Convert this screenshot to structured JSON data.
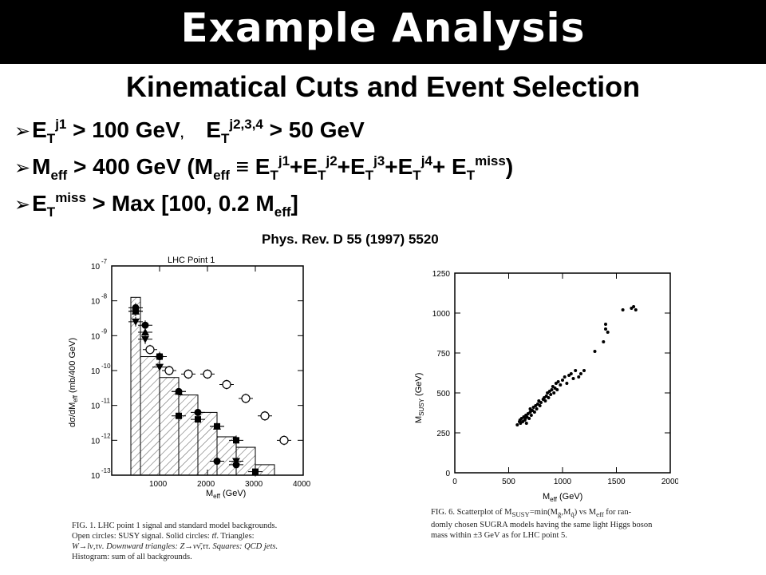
{
  "slide": {
    "title": "Example Analysis",
    "subtitle": "Kinematical Cuts and Event Selection",
    "reference": "Phys. Rev. D 55 (1997) 5520"
  },
  "bullets": {
    "b1": {
      "e1": "E",
      "t1": "T",
      "j1": "j1",
      "g1": " > 100 GeV",
      "comma": ",",
      "e2": "E",
      "t2": "T",
      "j2": "j2,3,4",
      "g2": " > 50 GeV"
    },
    "b2": {
      "m": "M",
      "eff": "eff",
      "g": " > 400 GeV (M",
      "eff2": "eff",
      "equiv": " ≡ ",
      "e1": "E",
      "t1": "T",
      "j1": "j1",
      "plus1": "+E",
      "t2": "T",
      "j2": "j2",
      "plus2": "+E",
      "t3": "T",
      "j3": "j3",
      "plus3": "+E",
      "t4": "T",
      "j4": "j4",
      "plus4": "+ E",
      "t5": "T",
      "miss": "miss",
      "close": ")"
    },
    "b3": {
      "e": "E",
      "t": "T",
      "miss": "miss",
      "g": " > Max [100, 0.2 M",
      "eff": "eff",
      "close": "]"
    }
  },
  "left_plot": {
    "panel_title": "LHC Point 1",
    "ylabel": "dσ/dM",
    "ylabel_sub": "eff",
    "ylabel_units": " (mb/400 GeV)",
    "xlabel": "M",
    "xlabel_sub": "eff",
    "xlabel_units": " (GeV)",
    "y_exp_labels": [
      "-7",
      "-8",
      "-9",
      "-10",
      "-11",
      "-12",
      "-13"
    ],
    "y_ten_labels": [
      "10",
      "10",
      "10",
      "10",
      "10",
      "10",
      "10"
    ],
    "x_tick_labels": [
      "1000",
      "2000",
      "3000",
      "4000"
    ],
    "caption": {
      "l1": "FIG. 1.  LHC point 1 signal and standard model backgrounds.",
      "l2a": "Open  circles:  SUSY  signal.  Solid  circles: ",
      "l2b": "tt̄",
      "l2c": ".  Triangles:",
      "l3": "W→lν,τν.  Downward triangles:  Z→νν̄,ττ.  Squares:  QCD jets.",
      "l4": "Histogram: sum of all backgrounds."
    }
  },
  "chart_data": [
    {
      "type": "scatter",
      "title": "LHC Point 1",
      "xlabel": "Meff (GeV)",
      "ylabel": "dσ/dMeff (mb/400 GeV)",
      "xlim": [
        0,
        4000
      ],
      "ylim_log10": [
        -13,
        -7
      ],
      "histogram": {
        "name": "Histogram: sum of all backgrounds",
        "bin_edges": [
          400,
          600,
          1000,
          1400,
          1800,
          2200,
          2600,
          3000,
          3400
        ],
        "log10_values": [
          -7.9,
          -9.6,
          -10.2,
          -10.7,
          -11.2,
          -11.9,
          -12.2,
          -12.7
        ]
      },
      "series": [
        {
          "name": "Open circles: SUSY signal",
          "x": [
            800,
            1200,
            1600,
            2000,
            2400,
            2800,
            3200,
            3600
          ],
          "log10_y": [
            -9.4,
            -10.0,
            -10.1,
            -10.1,
            -10.4,
            -10.8,
            -11.3,
            -12.0
          ]
        },
        {
          "name": "Solid circles: tt̄",
          "x": [
            500,
            700,
            1000,
            1400,
            1800,
            2200,
            2600
          ],
          "log10_y": [
            -8.2,
            -8.7,
            -9.6,
            -10.6,
            -11.2,
            -12.6,
            -12.7
          ]
        },
        {
          "name": "Triangles: W→lν,τν",
          "x": [
            500,
            700,
            1400,
            2200
          ],
          "log10_y": [
            -8.3,
            -8.9,
            -10.6,
            -11.6
          ]
        },
        {
          "name": "Downward triangles: Z→νν̄,ττ",
          "x": [
            500,
            700,
            1000,
            2600
          ],
          "log10_y": [
            -8.6,
            -9.1,
            -9.9,
            -12.6
          ]
        },
        {
          "name": "Squares: QCD jets",
          "x": [
            500,
            1000,
            1400,
            1800,
            2200,
            2600,
            3000
          ],
          "log10_y": [
            -8.3,
            -9.6,
            -11.3,
            -11.4,
            -11.6,
            -12.0,
            -12.9
          ]
        }
      ]
    },
    {
      "type": "scatter",
      "xlabel": "Meff (GeV)",
      "ylabel": "MSUSY (GeV)",
      "xlim": [
        0,
        2000
      ],
      "ylim": [
        0,
        1250
      ],
      "x": [
        580,
        600,
        605,
        610,
        620,
        630,
        640,
        650,
        655,
        660,
        665,
        670,
        680,
        690,
        700,
        700,
        710,
        720,
        730,
        740,
        750,
        760,
        770,
        780,
        790,
        800,
        820,
        830,
        840,
        850,
        860,
        870,
        880,
        890,
        900,
        910,
        920,
        930,
        940,
        950,
        960,
        980,
        1000,
        1020,
        1040,
        1060,
        1080,
        1100,
        1120,
        1150,
        1170,
        1200,
        1300,
        1380,
        1400,
        1400,
        1420,
        1560,
        1640,
        1660,
        1680
      ],
      "y": [
        300,
        320,
        330,
        310,
        340,
        320,
        350,
        330,
        340,
        360,
        310,
        350,
        370,
        340,
        380,
        400,
        360,
        390,
        410,
        380,
        420,
        400,
        430,
        450,
        420,
        440,
        460,
        470,
        450,
        480,
        500,
        470,
        510,
        490,
        520,
        540,
        500,
        530,
        560,
        520,
        570,
        550,
        580,
        600,
        560,
        610,
        620,
        590,
        640,
        600,
        620,
        640,
        760,
        820,
        900,
        930,
        880,
        1020,
        1030,
        1040,
        1020
      ]
    }
  ],
  "right_plot": {
    "ylabel": "M",
    "ylabel_sub": "SUSY",
    "ylabel_units": " (GeV)",
    "xlabel": "M",
    "xlabel_sub": "eff",
    "xlabel_units": " (GeV)",
    "y_tick_labels": [
      "0",
      "250",
      "500",
      "750",
      "1000",
      "1250"
    ],
    "x_tick_labels": [
      "0",
      "500",
      "1000",
      "1500",
      "2000"
    ],
    "caption": {
      "l1": "FIG. 6.  Scatterplot of M",
      "l1sub": "SUSY",
      "l1b": "=min(M",
      "l1c": "g̃",
      "l1d": ",M",
      "l1e": "q̃",
      "l1f": ") vs M",
      "l1g": "eff",
      "l1h": " for ran-",
      "l2": "domly chosen SUGRA models having the same light Higgs boson",
      "l3": "mass within ±3 GeV as for LHC point 5."
    }
  }
}
